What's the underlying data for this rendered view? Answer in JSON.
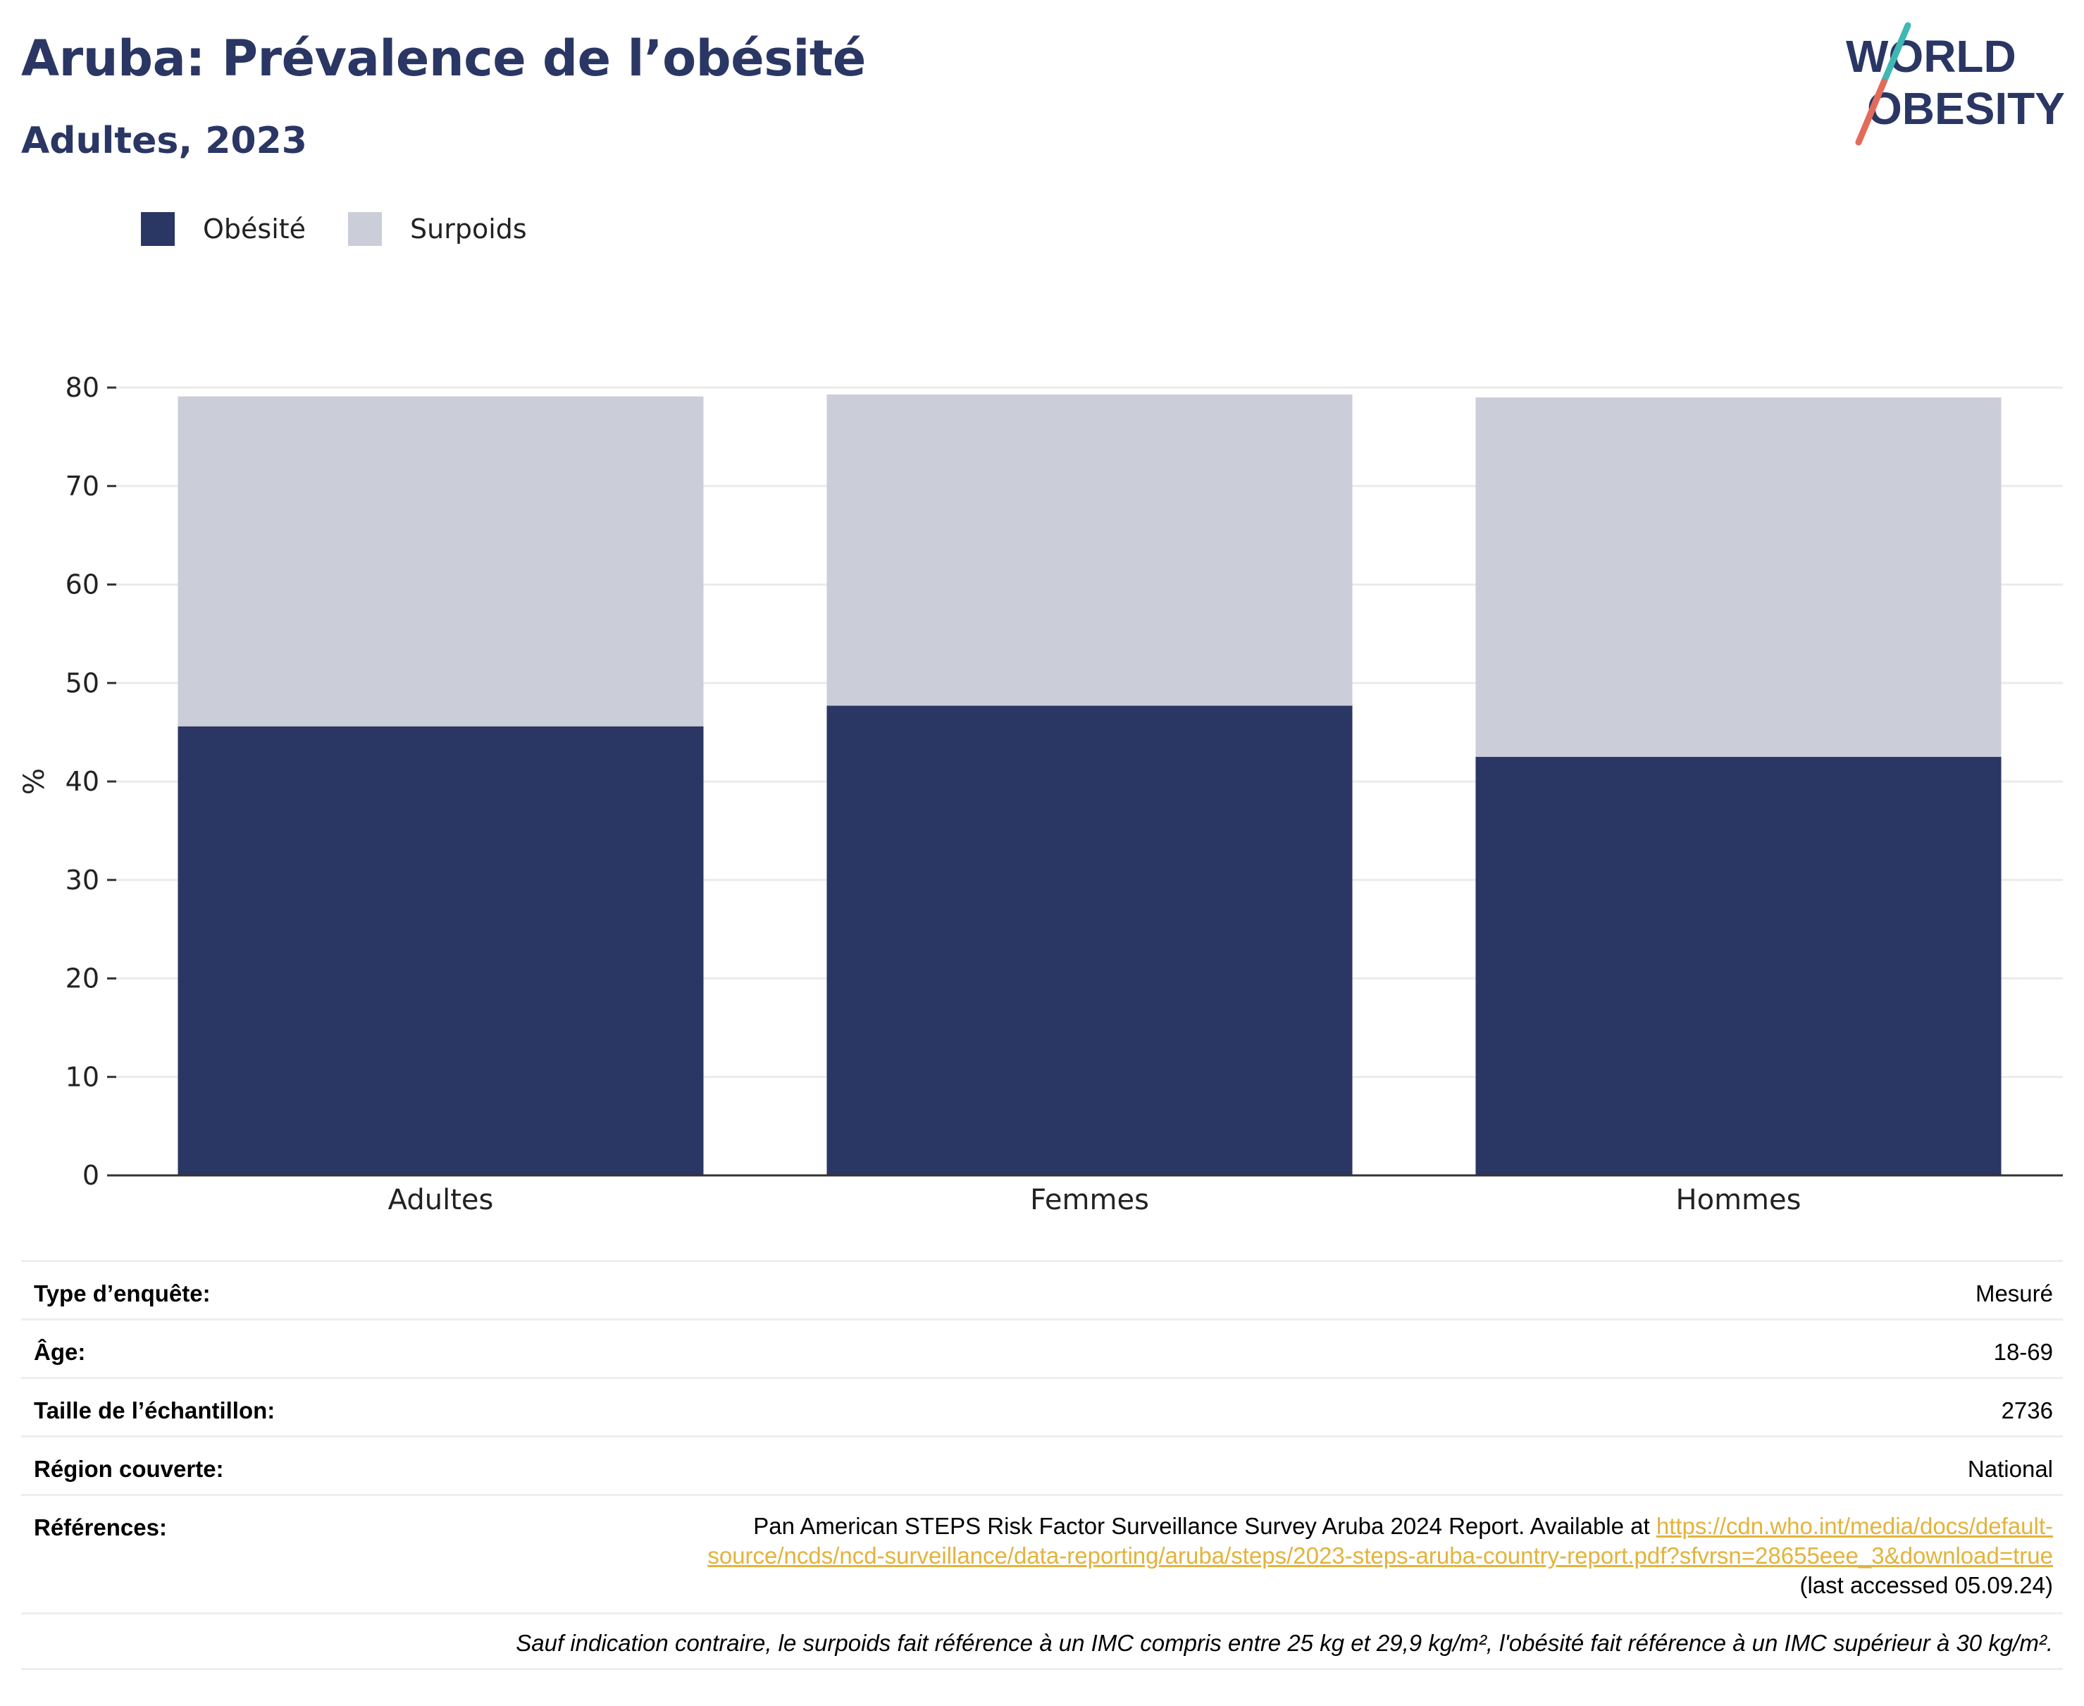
{
  "title": "Aruba: Prévalence de l’obésité",
  "subtitle": "Adultes, 2023",
  "logo": {
    "line1": "WORLD",
    "line2": "OBESITY"
  },
  "legend": [
    {
      "label": "Obésité",
      "color": "#2a3663"
    },
    {
      "label": "Surpoids",
      "color": "#cbcdd9"
    }
  ],
  "chart_data": {
    "type": "bar",
    "stacked": true,
    "categories": [
      "Adultes",
      "Femmes",
      "Hommes"
    ],
    "series": [
      {
        "name": "Obésité",
        "color": "#2a3663",
        "values": [
          45.6,
          47.7,
          42.5
        ]
      },
      {
        "name": "Surpoids",
        "color": "#cbcdd9",
        "values": [
          33.5,
          31.6,
          36.5
        ]
      }
    ],
    "ylabel": "%",
    "ylim": [
      0,
      80
    ],
    "yticks": [
      0,
      10,
      20,
      30,
      40,
      50,
      60,
      70,
      80
    ],
    "grid": true,
    "legend_position": "top-left"
  },
  "info": {
    "survey_type_label": "Type d’enquête:",
    "survey_type_value": "Mesuré",
    "age_label": "Âge:",
    "age_value": "18-69",
    "sample_label": "Taille de l’échantillon:",
    "sample_value": "2736",
    "region_label": "Région couverte:",
    "region_value": "National",
    "references_label": "Références:",
    "references_text": "Pan American STEPS Risk Factor Surveillance Survey Aruba 2024 Report. Available at",
    "references_link_line1": "https://cdn.who.int/media/docs/default-",
    "references_link_line2": "source/ncds/ncd-surveillance/data-reporting/aruba/steps/2023-steps-aruba-country-report.pdf?sfvrsn=28655eee_3&download=true",
    "references_accessed": "(last accessed 05.09.24)",
    "note": "Sauf indication contraire, le surpoids fait référence à un IMC compris entre 25 kg et 29,9 kg/m², l'obésité fait référence à un IMC supérieur à 30 kg/m²."
  }
}
